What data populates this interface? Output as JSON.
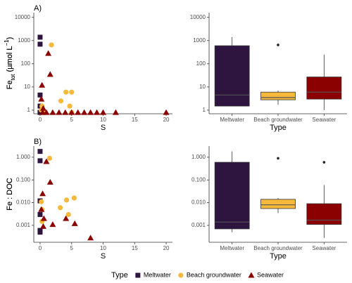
{
  "chart_data": [
    {
      "type": "scatter",
      "panel_label": "A)",
      "x_label": "S",
      "y_label_parts": [
        "Fe",
        "tot",
        " (µmol L",
        "−1",
        ")"
      ],
      "log_y": true,
      "xlim": [
        -1,
        21
      ],
      "xticks": [
        0,
        5,
        10,
        15,
        20
      ],
      "ylim": [
        0.7,
        16000
      ],
      "yticks": [
        1,
        10,
        100,
        1000,
        10000
      ],
      "legend_title": "Type",
      "legend": "bottom",
      "series": [
        {
          "name": "Meltwater",
          "color": "#2d1540",
          "marker": "square",
          "x": [
            0,
            0,
            0,
            0,
            0,
            0
          ],
          "values": [
            1400,
            700,
            4.5,
            1.5,
            0.8,
            0.8
          ]
        },
        {
          "name": "Beach groundwater",
          "color": "#f6b93b",
          "marker": "circle",
          "x": [
            1.8,
            0.3,
            0.2,
            3.3,
            4.1,
            5.0,
            4.7,
            5.0,
            0.5
          ],
          "values": [
            650,
            1.5,
            1.0,
            2.5,
            6,
            6,
            1.5,
            0.8,
            0.8
          ]
        },
        {
          "name": "Seawater",
          "color": "#8b0000",
          "marker": "triangle",
          "x": [
            1.3,
            1.6,
            0.3,
            0.2,
            0.5,
            0.4,
            1,
            2,
            3,
            4,
            5,
            6,
            7,
            8,
            9,
            10,
            12,
            20
          ],
          "values": [
            280,
            35,
            12,
            3,
            1.2,
            0.8,
            0.8,
            0.8,
            0.8,
            0.8,
            0.8,
            0.8,
            0.8,
            0.8,
            0.8,
            0.8,
            0.8,
            0.8
          ]
        }
      ]
    },
    {
      "type": "box",
      "x_label": "Type",
      "y_label_parts": [
        "Fe",
        "tot",
        " (µmol L",
        "−1",
        ")"
      ],
      "log_y": true,
      "ylim": [
        0.7,
        16000
      ],
      "yticks": [
        1,
        10,
        100,
        1000,
        10000
      ],
      "categories": [
        "Meltwater",
        "Beach groundwater",
        "Seawater"
      ],
      "colors": [
        "#2d1540",
        "#f6b93b",
        "#8b0000"
      ],
      "whisker_low": [
        1.5,
        1.7,
        1.0
      ],
      "q1": [
        1.5,
        2.8,
        3
      ],
      "median": [
        4.5,
        3.5,
        6
      ],
      "q3": [
        600,
        6,
        27
      ],
      "whisker_high": [
        1400,
        7,
        250
      ],
      "outliers": [
        [],
        [
          650
        ],
        []
      ]
    },
    {
      "type": "scatter",
      "panel_label": "B)",
      "x_label": "S",
      "y_label_parts": [
        "Fe : DOC"
      ],
      "log_y": true,
      "xlim": [
        -1,
        21
      ],
      "xticks": [
        0,
        5,
        10,
        15,
        20
      ],
      "ylim": [
        0.00018,
        3.1
      ],
      "yticks": [
        {
          "value": 0.001,
          "label": "0.001"
        },
        {
          "value": 0.01,
          "label": "0.010"
        },
        {
          "value": 0.1,
          "label": "0.100"
        },
        {
          "value": 1,
          "label": "1.000"
        }
      ],
      "series": [
        {
          "name": "Meltwater",
          "color": "#2d1540",
          "marker": "square",
          "x": [
            0,
            0,
            0,
            0,
            0,
            0
          ],
          "values": [
            1.8,
            0.7,
            0.012,
            0.003,
            0.0006,
            0.0005
          ]
        },
        {
          "name": "Beach groundwater",
          "color": "#f6b93b",
          "marker": "circle",
          "x": [
            1.5,
            0.2,
            0.3,
            3.2,
            4.2,
            5.4,
            4.5,
            0.3
          ],
          "values": [
            0.9,
            0.011,
            0.005,
            0.006,
            0.013,
            0.016,
            0.003,
            0.0015
          ]
        },
        {
          "name": "Seawater",
          "color": "#8b0000",
          "marker": "triangle",
          "x": [
            1,
            1.6,
            0.4,
            0.2,
            0.6,
            0.5,
            2,
            4.1,
            5.5,
            8
          ],
          "values": [
            0.65,
            0.08,
            0.025,
            0.005,
            0.002,
            0.0009,
            0.0011,
            0.002,
            0.0012,
            0.00028
          ]
        }
      ]
    },
    {
      "type": "box",
      "x_label": "Type",
      "y_label_parts": [
        "Fe : DOC"
      ],
      "log_y": true,
      "ylim": [
        0.00018,
        3.1
      ],
      "yticks": [
        {
          "value": 0.001,
          "label": "0.001"
        },
        {
          "value": 0.01,
          "label": "0.010"
        },
        {
          "value": 0.1,
          "label": "0.100"
        },
        {
          "value": 1,
          "label": "1.000"
        }
      ],
      "categories": [
        "Meltwater",
        "Beach groundwater",
        "Seawater"
      ],
      "colors": [
        "#2d1540",
        "#f6b93b",
        "#8b0000"
      ],
      "whisker_low": [
        0.0005,
        0.0035,
        0.00028
      ],
      "q1": [
        0.0007,
        0.0055,
        0.0011
      ],
      "median": [
        0.0014,
        0.008,
        0.0017
      ],
      "q3": [
        0.6,
        0.014,
        0.009
      ],
      "whisker_high": [
        1.8,
        0.016,
        0.06
      ],
      "outliers": [
        [],
        [
          0.9
        ],
        [
          0.6
        ]
      ]
    }
  ]
}
